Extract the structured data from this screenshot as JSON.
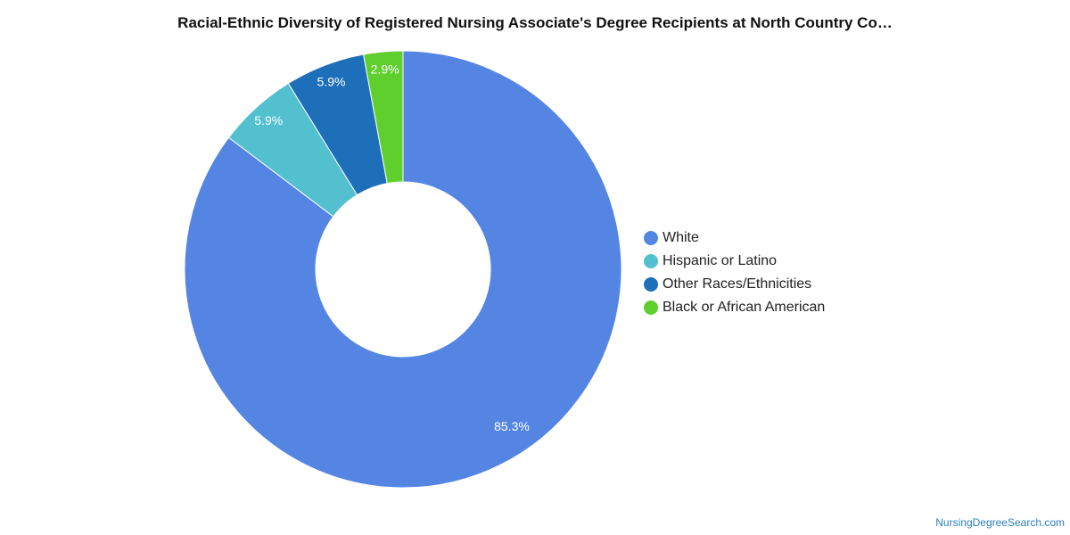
{
  "chart_data": {
    "type": "pie",
    "title": "Racial-Ethnic Diversity of Registered Nursing Associate's Degree Recipients at North Country Co…",
    "categories": [
      "White",
      "Hispanic or Latino",
      "Other Races/Ethnicities",
      "Black or African American"
    ],
    "values": [
      85.3,
      5.9,
      5.9,
      2.9
    ],
    "labels": [
      "85.3%",
      "5.9%",
      "5.9%",
      "2.9%"
    ],
    "colors": [
      "#5585e3",
      "#53c0cf",
      "#1e6fba",
      "#5ecf2d"
    ],
    "donut": true,
    "legend_position": "right"
  },
  "watermark": "NursingDegreeSearch.com"
}
